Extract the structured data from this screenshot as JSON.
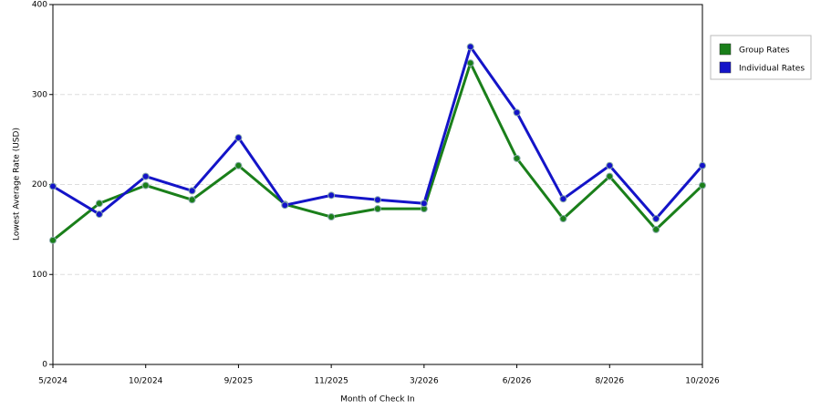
{
  "chart_data": {
    "type": "line",
    "x_label": "Month of Check In",
    "y_label": "Lowest Average Rate (USD)",
    "categories": [
      "5/2024",
      null,
      "10/2024",
      null,
      "9/2025",
      null,
      "11/2025",
      null,
      "3/2026",
      null,
      "6/2026",
      null,
      "8/2026",
      null,
      "10/2026"
    ],
    "series": [
      {
        "name": "Group Rates",
        "color": "#1a7f1a",
        "values": [
          138,
          179,
          199,
          183,
          221,
          178,
          164,
          173,
          173,
          335,
          229,
          162,
          209,
          150,
          199
        ]
      },
      {
        "name": "Individual Rates",
        "color": "#1414c8",
        "values": [
          198,
          167,
          209,
          193,
          252,
          177,
          188,
          183,
          179,
          353,
          280,
          184,
          221,
          162,
          221
        ]
      }
    ],
    "ylim": [
      0,
      400
    ],
    "yticks": [
      0,
      100,
      200,
      300,
      400
    ],
    "grid": true,
    "legend": "right"
  }
}
